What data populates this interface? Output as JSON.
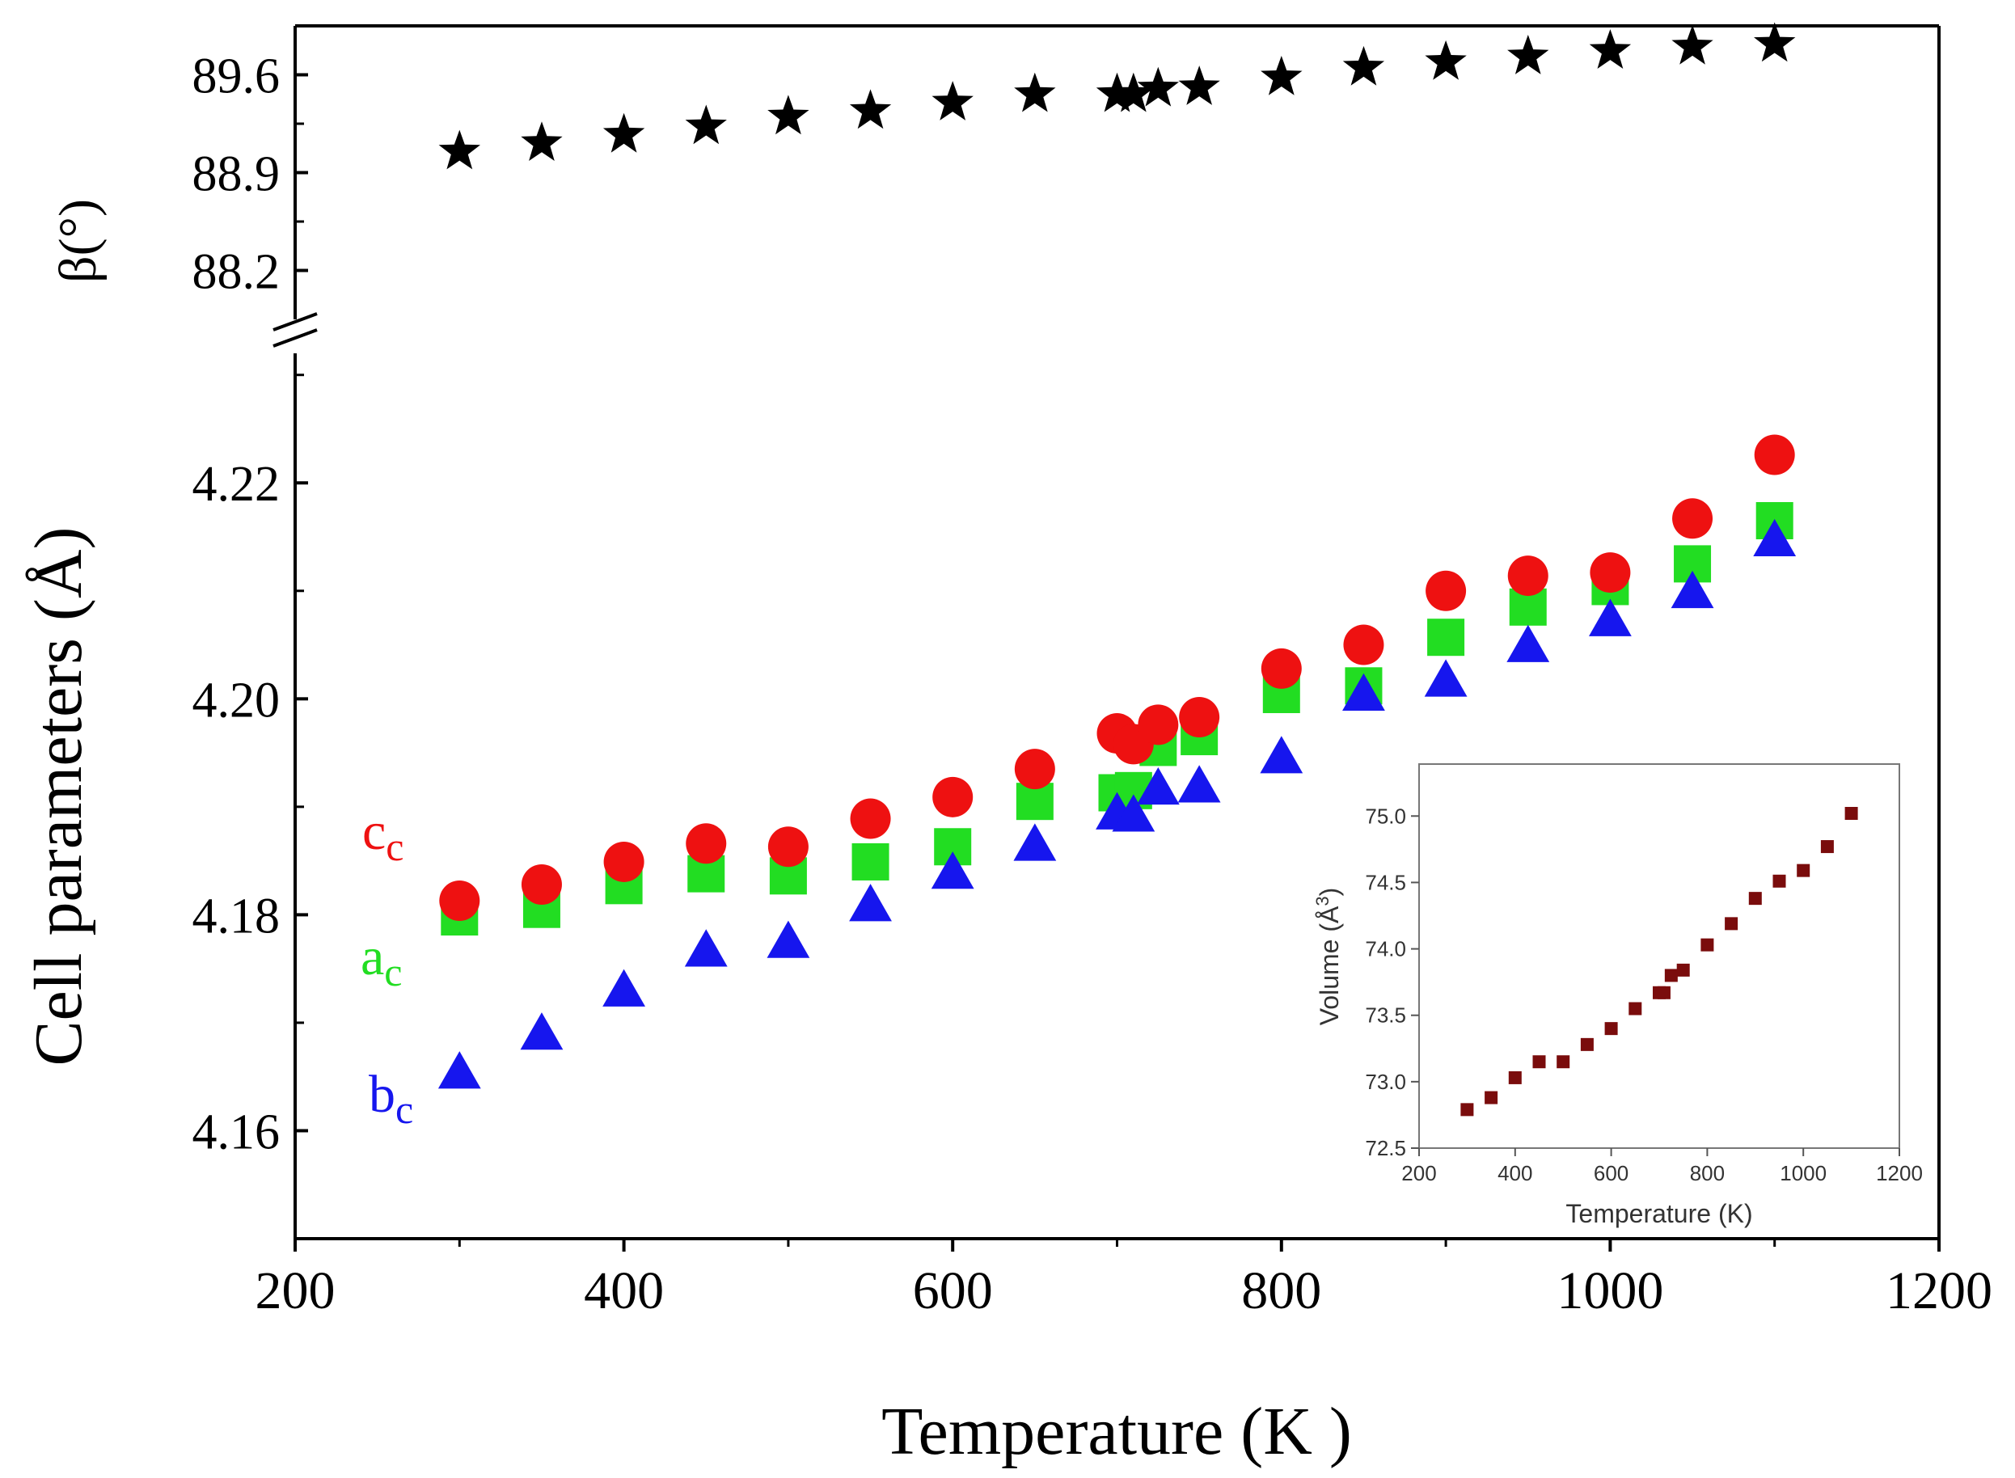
{
  "chart_data": [
    {
      "id": "main",
      "type": "scatter",
      "xlabel": "Temperature (K )",
      "xlim": [
        200,
        1200
      ],
      "xticks": [
        200,
        400,
        600,
        800,
        1000,
        1200
      ],
      "temperatures": [
        300,
        350,
        400,
        450,
        500,
        550,
        600,
        650,
        700,
        710,
        725,
        750,
        800,
        850,
        900,
        950,
        1000,
        1050,
        1100
      ],
      "upper_panel": {
        "ylabel": "β(°)",
        "ylim": [
          87.85,
          89.95
        ],
        "yticks": [
          "88.2",
          "88.9",
          "89.6"
        ],
        "series": [
          {
            "name": "β",
            "marker": "star",
            "color": "#000000",
            "values": [
              89.05,
              89.11,
              89.17,
              89.23,
              89.3,
              89.34,
              89.4,
              89.46,
              89.46,
              89.46,
              89.5,
              89.51,
              89.58,
              89.65,
              89.69,
              89.73,
              89.77,
              89.8,
              89.82
            ]
          }
        ]
      },
      "lower_panel": {
        "ylabel": "Cell parameters (Å)",
        "ylim": [
          4.15,
          4.232
        ],
        "yticks": [
          "4.16",
          "4.18",
          "4.20",
          "4.22"
        ],
        "series": [
          {
            "name": "a",
            "subscript": "c",
            "marker": "square",
            "color": "#22dd22",
            "values": [
              4.1798,
              4.1805,
              4.1827,
              4.1838,
              4.1836,
              4.1849,
              4.1863,
              4.1905,
              4.1913,
              4.1915,
              4.1955,
              4.1965,
              4.2004,
              4.2012,
              4.2057,
              4.2085,
              4.2104,
              4.2125,
              4.2165
            ]
          },
          {
            "name": "b",
            "subscript": "c",
            "marker": "triangle",
            "color": "#1616ee",
            "values": [
              4.1653,
              4.1689,
              4.1729,
              4.1766,
              4.1774,
              4.1808,
              4.1838,
              4.1864,
              4.1893,
              4.1891,
              4.1916,
              4.1918,
              4.1945,
              4.2003,
              4.2016,
              4.2048,
              4.2072,
              4.2098,
              4.2146
            ]
          },
          {
            "name": "c",
            "subscript": "c",
            "marker": "circle",
            "color": "#ee1111",
            "values": [
              4.1813,
              4.1828,
              4.1849,
              4.1866,
              4.1863,
              4.1889,
              4.1909,
              4.1935,
              4.1968,
              4.1958,
              4.1976,
              4.1983,
              4.2028,
              4.205,
              4.21,
              4.2114,
              4.2117,
              4.2167,
              4.2226
            ]
          }
        ]
      }
    },
    {
      "id": "inset",
      "type": "scatter",
      "xlabel": "Temperature (K)",
      "ylabel": "Volume (Å",
      "ylabel_superscript": "3",
      "ylabel_close": ")",
      "xlim": [
        200,
        1200
      ],
      "ylim": [
        72.5,
        75.3
      ],
      "xticks": [
        "200",
        "400",
        "600",
        "800",
        "1000",
        "1200"
      ],
      "yticks": [
        "72.5",
        "73.0",
        "73.5",
        "74.0",
        "74.5",
        "75.0"
      ],
      "series": [
        {
          "name": "Volume",
          "marker": "square",
          "color": "#7a0c0c",
          "x": [
            300,
            350,
            400,
            450,
            500,
            550,
            600,
            650,
            700,
            710,
            725,
            750,
            800,
            850,
            900,
            950,
            1000,
            1050,
            1100
          ],
          "values": [
            72.79,
            72.88,
            73.03,
            73.15,
            73.15,
            73.28,
            73.4,
            73.55,
            73.67,
            73.67,
            73.8,
            73.84,
            74.03,
            74.19,
            74.38,
            74.51,
            74.59,
            74.77,
            75.02
          ]
        }
      ]
    }
  ]
}
